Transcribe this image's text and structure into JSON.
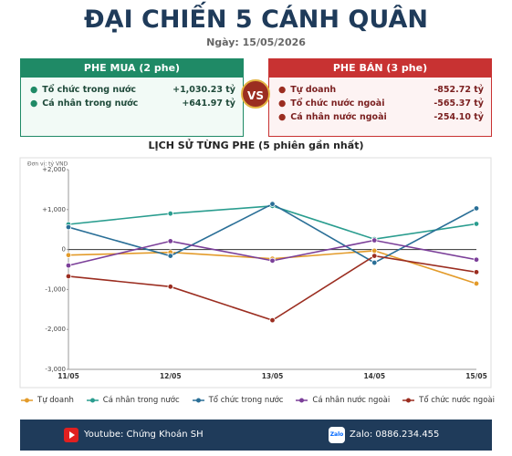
{
  "header": {
    "title": "ĐẠI CHIẾN 5 CÁNH QUÂN",
    "date": "Ngày: 15/05/2026"
  },
  "buy_panel": {
    "title": "PHE MUA  (2 phe)",
    "rows": [
      [
        "Tổ chức trong nước",
        "+1,030.23 tỷ"
      ],
      [
        "Cá nhân trong nước",
        "+641.97 tỷ"
      ]
    ]
  },
  "vs": "VS",
  "sell_panel": {
    "title": "PHE BÁN  (3 phe)",
    "rows": [
      [
        "Tự doanh",
        "-852.72 tỷ"
      ],
      [
        "Tổ chức nước ngoài",
        "-565.37 tỷ"
      ],
      [
        "Cá nhân nước ngoài",
        "-254.10 tỷ"
      ]
    ]
  },
  "chart_data": {
    "type": "line",
    "title": "LỊCH SỬ TỪNG PHE (5 phiên gần nhất)",
    "unit_label": "Đơn vị: tỷ VND",
    "categories": [
      "11/05",
      "12/05",
      "13/05",
      "14/05",
      "15/05"
    ],
    "series": [
      {
        "name": "Tự doanh",
        "color": "#e39b2a",
        "values": [
          -140,
          -70,
          -230,
          -30,
          -852.72
        ]
      },
      {
        "name": "Cá nhân trong nước",
        "color": "#2a9d8f",
        "values": [
          630,
          900,
          1090,
          260,
          641.97
        ]
      },
      {
        "name": "Tổ chức trong nước",
        "color": "#2a6f97",
        "values": [
          560,
          -160,
          1140,
          -330,
          1030.23
        ]
      },
      {
        "name": "Cá nhân nước ngoài",
        "color": "#7b3f99",
        "values": [
          -400,
          210,
          -280,
          230,
          -254.1
        ]
      },
      {
        "name": "Tổ chức nước ngoài",
        "color": "#9b2d20",
        "values": [
          -670,
          -930,
          -1770,
          -160,
          -565.37
        ]
      }
    ],
    "ylim": [
      -3000,
      2000
    ],
    "yticks": [
      {
        "value": 2000,
        "label": "+2,000"
      },
      {
        "value": 1000,
        "label": "+1,000"
      },
      0,
      {
        "value": -1000,
        "label": "-1,000"
      },
      {
        "value": -2000,
        "label": "-2,000"
      },
      {
        "value": -3000,
        "label": "-3,000"
      }
    ],
    "zero_line": true
  },
  "footer": {
    "youtube": "Youtube: Chứng Khoán SH",
    "zalo_icon": "Zalo",
    "zalo": "Zalo: 0886.234.455"
  }
}
